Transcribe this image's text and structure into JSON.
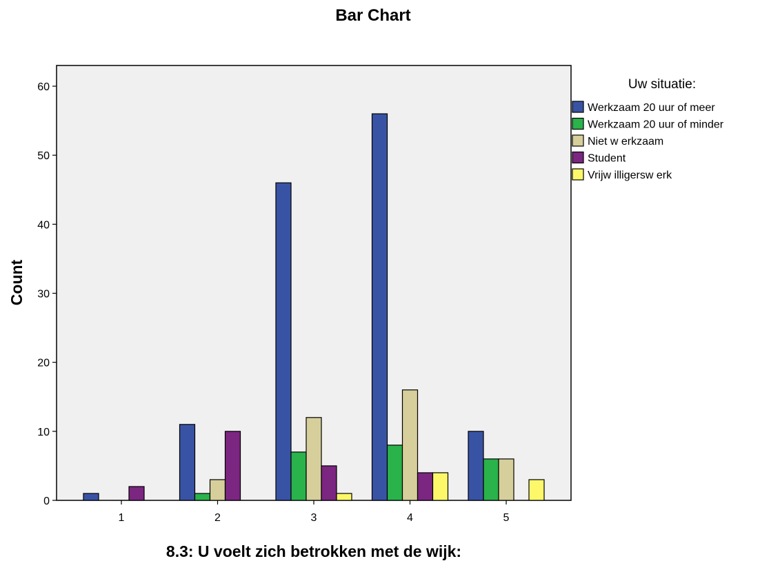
{
  "chart_data": {
    "type": "bar",
    "title": "Bar Chart",
    "xlabel": "8.3: U voelt zich betrokken met de wijk:",
    "ylabel": "Count",
    "categories": [
      "1",
      "2",
      "3",
      "4",
      "5"
    ],
    "ylim": [
      0,
      63
    ],
    "yticks": [
      "0",
      "10",
      "20",
      "30",
      "40",
      "50",
      "60"
    ],
    "grid": false,
    "legend": {
      "title": "Uw situatie:",
      "placement": "right"
    },
    "series": [
      {
        "name": "Werkzaam 20 uur of meer",
        "color": "#3953a4",
        "values": [
          1,
          11,
          46,
          56,
          10
        ]
      },
      {
        "name": "Werkzaam 20 uur of minder",
        "color": "#2ab24b",
        "values": [
          0,
          1,
          7,
          8,
          6
        ]
      },
      {
        "name": "Niet w erkzaam",
        "color": "#d6cf9b",
        "values": [
          0,
          3,
          12,
          16,
          6
        ]
      },
      {
        "name": "Student",
        "color": "#7b2680",
        "values": [
          2,
          10,
          5,
          4,
          0
        ]
      },
      {
        "name": "Vrijw illigersw erk",
        "color": "#fcf86a",
        "values": [
          0,
          0,
          1,
          4,
          3
        ]
      }
    ]
  }
}
